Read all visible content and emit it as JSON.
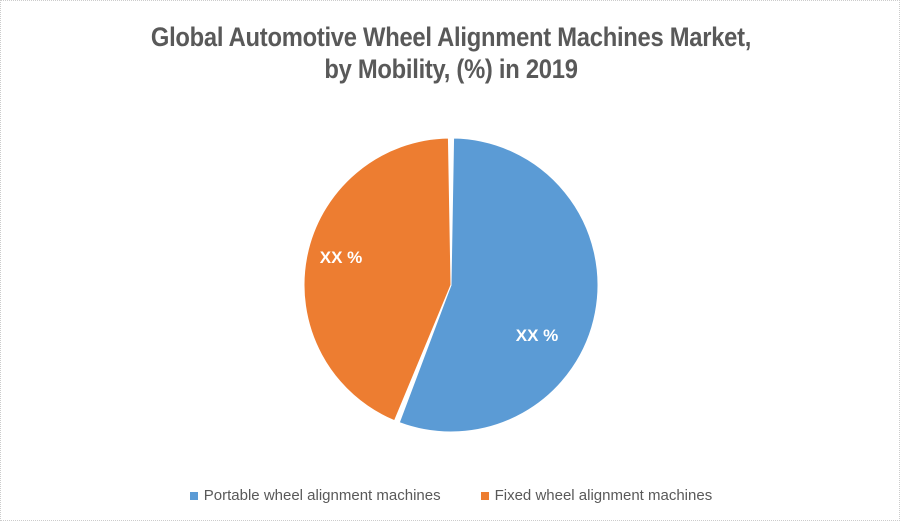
{
  "title": {
    "lines": [
      "Global Automotive Wheel Alignment Machines Market,",
      "by Mobility, (%) in 2019"
    ]
  },
  "chart_data": {
    "type": "pie",
    "title": "Global Automotive Wheel Alignment Machines Market, by Mobility, (%) in 2019",
    "categories": [
      "Portable wheel alignment machines",
      "Fixed wheel alignment machines"
    ],
    "values": [
      56,
      44
    ],
    "value_labels": [
      "XX %",
      "XX %"
    ],
    "colors": [
      "#5B9BD5",
      "#ED7D31"
    ],
    "start_angle_deg": 0,
    "direction": "clockwise",
    "legend_position": "bottom",
    "note": "Slice data labels are masked as 'XX %' in the chart; the 56/44 split is estimated from the arc angles."
  },
  "legend": {
    "items": [
      {
        "label": "Portable wheel alignment machines",
        "color": "#5B9BD5"
      },
      {
        "label": "Fixed wheel alignment machines",
        "color": "#ED7D31"
      }
    ]
  },
  "styles": {
    "background": "#FFFFFF",
    "text_color": "#595959",
    "label_text_color": "#FFFFFF",
    "border_color": "#CCCCCC"
  }
}
